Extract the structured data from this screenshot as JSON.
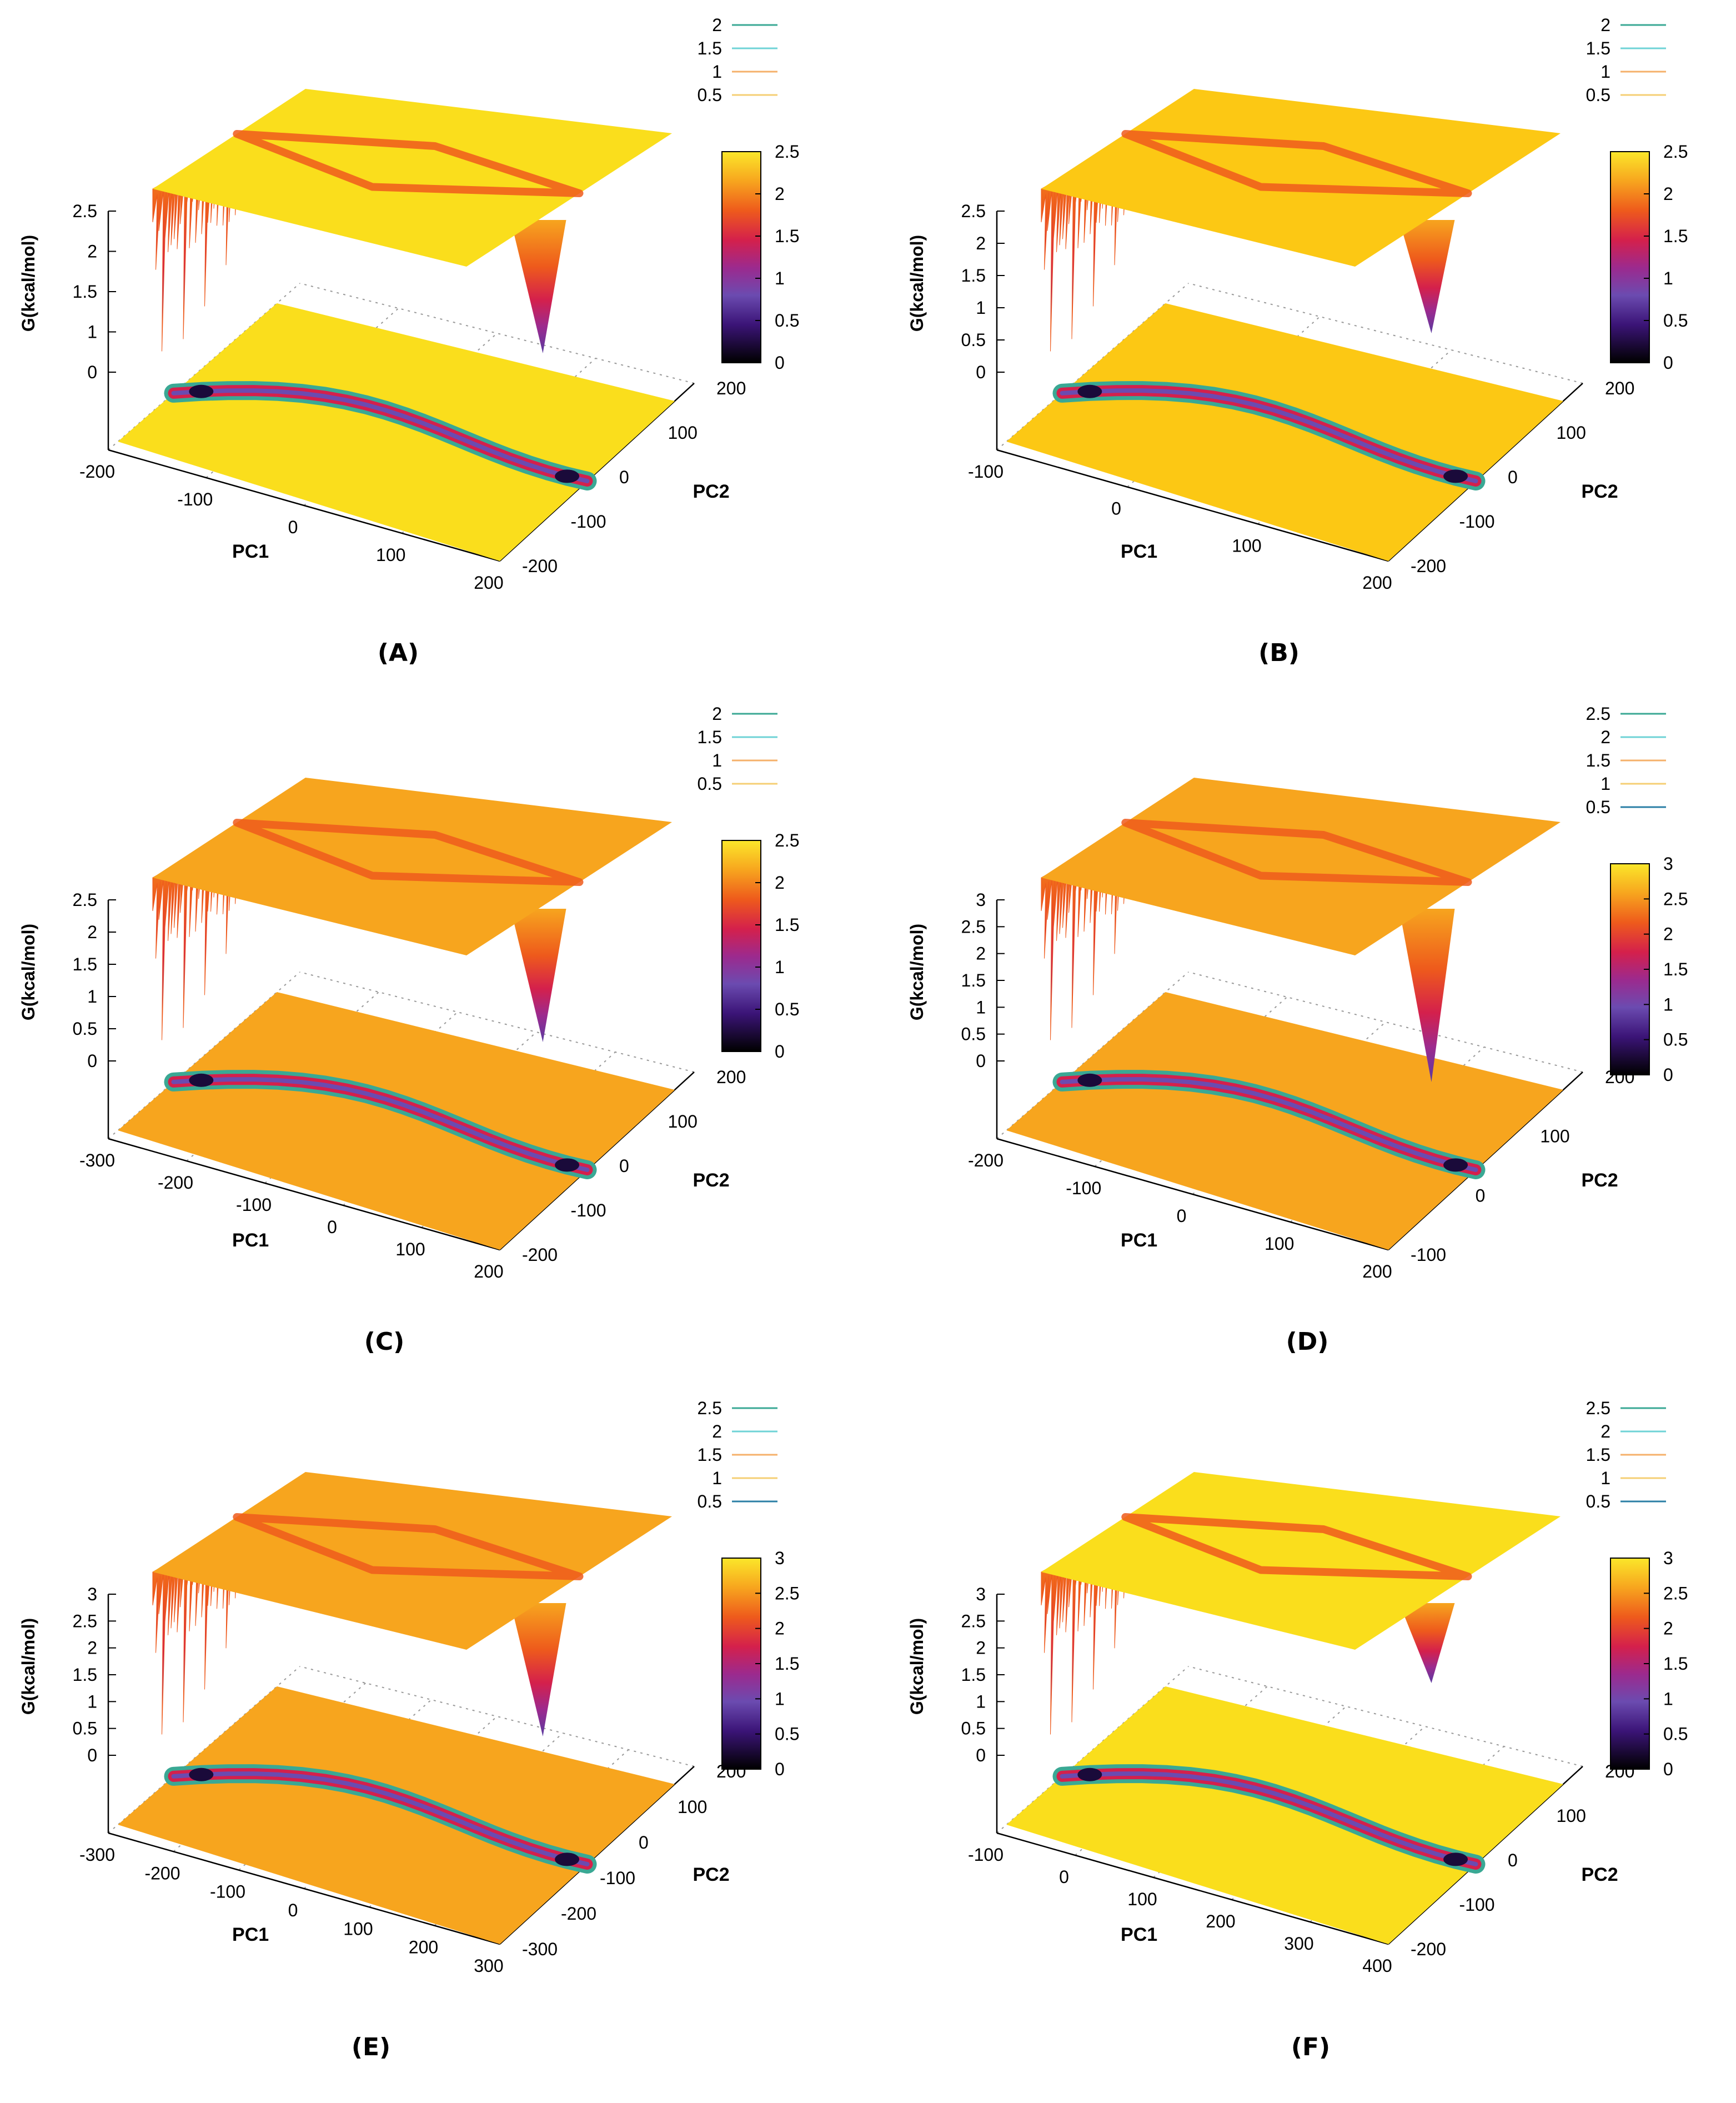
{
  "chart_data": [
    {
      "type": "surface",
      "panel": "(A)",
      "zlabel": "G(kcal/mol)",
      "xlabel": "PC1",
      "ylabel": "PC2",
      "x_ticks": [
        "-200",
        "-100",
        "0",
        "100",
        "200"
      ],
      "y_ticks": [
        "-200",
        "-100",
        "0",
        "100",
        "200"
      ],
      "z_ticks": [
        "0",
        "1",
        "1.5",
        "2",
        "2.5"
      ],
      "colorbar_ticks": [
        "0",
        "0.5",
        "1",
        "1.5",
        "2",
        "2.5"
      ],
      "colorbar_range": [
        0,
        2.5
      ],
      "contour_legend": [
        {
          "level": "2",
          "color": "#3aa894"
        },
        {
          "level": "1.5",
          "color": "#6fd3d6"
        },
        {
          "level": "1",
          "color": "#f5b06a"
        },
        {
          "level": "0.5",
          "color": "#f5cf74"
        }
      ],
      "plateau_color": "#fade1c",
      "well_depth": 2.0
    },
    {
      "type": "surface",
      "panel": "(B)",
      "zlabel": "G(kcal/mol)",
      "xlabel": "PC1",
      "ylabel": "PC2",
      "x_ticks": [
        "-100",
        "0",
        "100",
        "200"
      ],
      "y_ticks": [
        "-200",
        "-100",
        "0",
        "100",
        "200"
      ],
      "z_ticks": [
        "0",
        "0.5",
        "1",
        "1.5",
        "2",
        "2.5"
      ],
      "colorbar_ticks": [
        "0",
        "0.5",
        "1",
        "1.5",
        "2",
        "2.5"
      ],
      "colorbar_range": [
        0,
        2.5
      ],
      "contour_legend": [
        {
          "level": "2",
          "color": "#3aa894"
        },
        {
          "level": "1.5",
          "color": "#6fd3d6"
        },
        {
          "level": "1",
          "color": "#f5b06a"
        },
        {
          "level": "0.5",
          "color": "#f5cf74"
        }
      ],
      "plateau_color": "#fcc814",
      "well_depth": 1.7
    },
    {
      "type": "surface",
      "panel": "(C)",
      "zlabel": "G(kcal/mol)",
      "xlabel": "PC1",
      "ylabel": "PC2",
      "x_ticks": [
        "-300",
        "-200",
        "-100",
        "0",
        "100",
        "200"
      ],
      "y_ticks": [
        "-200",
        "-100",
        "0",
        "100",
        "200"
      ],
      "z_ticks": [
        "0",
        "0.5",
        "1",
        "1.5",
        "2",
        "2.5"
      ],
      "colorbar_ticks": [
        "0",
        "0.5",
        "1",
        "1.5",
        "2",
        "2.5"
      ],
      "colorbar_range": [
        0,
        2.5
      ],
      "contour_legend": [
        {
          "level": "2",
          "color": "#3aa894"
        },
        {
          "level": "1.5",
          "color": "#6fd3d6"
        },
        {
          "level": "1",
          "color": "#f5b06a"
        },
        {
          "level": "0.5",
          "color": "#f5cf74"
        }
      ],
      "plateau_color": "#f7a51e",
      "well_depth": 2.0
    },
    {
      "type": "surface",
      "panel": "(D)",
      "zlabel": "G(kcal/mol)",
      "xlabel": "PC1",
      "ylabel": "PC2",
      "x_ticks": [
        "-200",
        "-100",
        "0",
        "100",
        "200"
      ],
      "y_ticks": [
        "-100",
        "0",
        "100",
        "200"
      ],
      "z_ticks": [
        "0",
        "0.5",
        "1",
        "1.5",
        "2",
        "2.5",
        "3"
      ],
      "colorbar_ticks": [
        "0",
        "0.5",
        "1",
        "1.5",
        "2",
        "2.5",
        "3"
      ],
      "colorbar_range": [
        0,
        3
      ],
      "contour_legend": [
        {
          "level": "2.5",
          "color": "#3aa894"
        },
        {
          "level": "2",
          "color": "#6fd3d6"
        },
        {
          "level": "1.5",
          "color": "#f5b06a"
        },
        {
          "level": "1",
          "color": "#f5cf74"
        },
        {
          "level": "0.5",
          "color": "#2b7fa6"
        }
      ],
      "plateau_color": "#f7a51e",
      "well_depth": 2.6
    },
    {
      "type": "surface",
      "panel": "(E)",
      "zlabel": "G(kcal/mol)",
      "xlabel": "PC1",
      "ylabel": "PC2",
      "x_ticks": [
        "-300",
        "-200",
        "-100",
        "0",
        "100",
        "200",
        "300"
      ],
      "y_ticks": [
        "-300",
        "-200",
        "-100",
        "0",
        "100",
        "200"
      ],
      "z_ticks": [
        "0",
        "0.5",
        "1",
        "1.5",
        "2",
        "2.5",
        "3"
      ],
      "colorbar_ticks": [
        "0",
        "0.5",
        "1",
        "1.5",
        "2",
        "2.5",
        "3"
      ],
      "colorbar_range": [
        0,
        3
      ],
      "contour_legend": [
        {
          "level": "2.5",
          "color": "#3aa894"
        },
        {
          "level": "2",
          "color": "#6fd3d6"
        },
        {
          "level": "1.5",
          "color": "#f5b06a"
        },
        {
          "level": "1",
          "color": "#f5cf74"
        },
        {
          "level": "0.5",
          "color": "#2b7fa6"
        }
      ],
      "plateau_color": "#f7a51e",
      "well_depth": 2.0
    },
    {
      "type": "surface",
      "panel": "(F)",
      "zlabel": "G(kcal/mol)",
      "xlabel": "PC1",
      "ylabel": "PC2",
      "x_ticks": [
        "-100",
        "0",
        "100",
        "200",
        "300",
        "400"
      ],
      "y_ticks": [
        "-200",
        "-100",
        "0",
        "100",
        "200"
      ],
      "z_ticks": [
        "0",
        "0.5",
        "1",
        "1.5",
        "2",
        "2.5",
        "3"
      ],
      "colorbar_ticks": [
        "0",
        "0.5",
        "1",
        "1.5",
        "2",
        "2.5",
        "3"
      ],
      "colorbar_range": [
        0,
        3
      ],
      "contour_legend": [
        {
          "level": "2.5",
          "color": "#3aa894"
        },
        {
          "level": "2",
          "color": "#6fd3d6"
        },
        {
          "level": "1.5",
          "color": "#f5b06a"
        },
        {
          "level": "1",
          "color": "#f5cf74"
        },
        {
          "level": "0.5",
          "color": "#2b7fa6"
        }
      ],
      "plateau_color": "#fade1c",
      "well_depth": 1.2
    }
  ]
}
